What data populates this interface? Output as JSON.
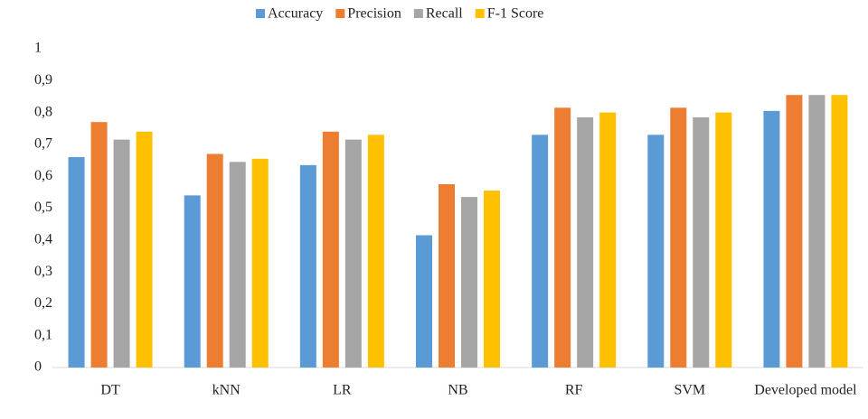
{
  "chart_data": {
    "type": "bar",
    "categories": [
      "DT",
      "kNN",
      "LR",
      "NB",
      "RF",
      "SVM",
      "Developed model"
    ],
    "series": [
      {
        "name": "Accuracy",
        "color": "#5b9bd5",
        "values": [
          0.66,
          0.54,
          0.635,
          0.415,
          0.73,
          0.73,
          0.805
        ]
      },
      {
        "name": "Precision",
        "color": "#ed7d31",
        "values": [
          0.77,
          0.67,
          0.74,
          0.575,
          0.815,
          0.815,
          0.855
        ]
      },
      {
        "name": "Recall",
        "color": "#a5a5a5",
        "values": [
          0.715,
          0.645,
          0.715,
          0.535,
          0.785,
          0.785,
          0.855
        ]
      },
      {
        "name": "F-1 Score",
        "color": "#ffc000",
        "values": [
          0.74,
          0.655,
          0.73,
          0.555,
          0.8,
          0.8,
          0.855
        ]
      }
    ],
    "ylim": [
      0,
      1
    ],
    "yticks": [
      0,
      {
        "value": 0.1,
        "label": "0,1"
      },
      {
        "value": 0.2,
        "label": "0,2"
      },
      {
        "value": 0.3,
        "label": "0,3"
      },
      {
        "value": 0.4,
        "label": "0,4"
      },
      {
        "value": 0.5,
        "label": "0,5"
      },
      {
        "value": 0.6,
        "label": "0,6"
      },
      {
        "value": 0.7,
        "label": "0,7"
      },
      {
        "value": 0.8,
        "label": "0,8"
      },
      {
        "value": 0.9,
        "label": "0,9"
      },
      1
    ],
    "grid": false,
    "legend": "top"
  }
}
